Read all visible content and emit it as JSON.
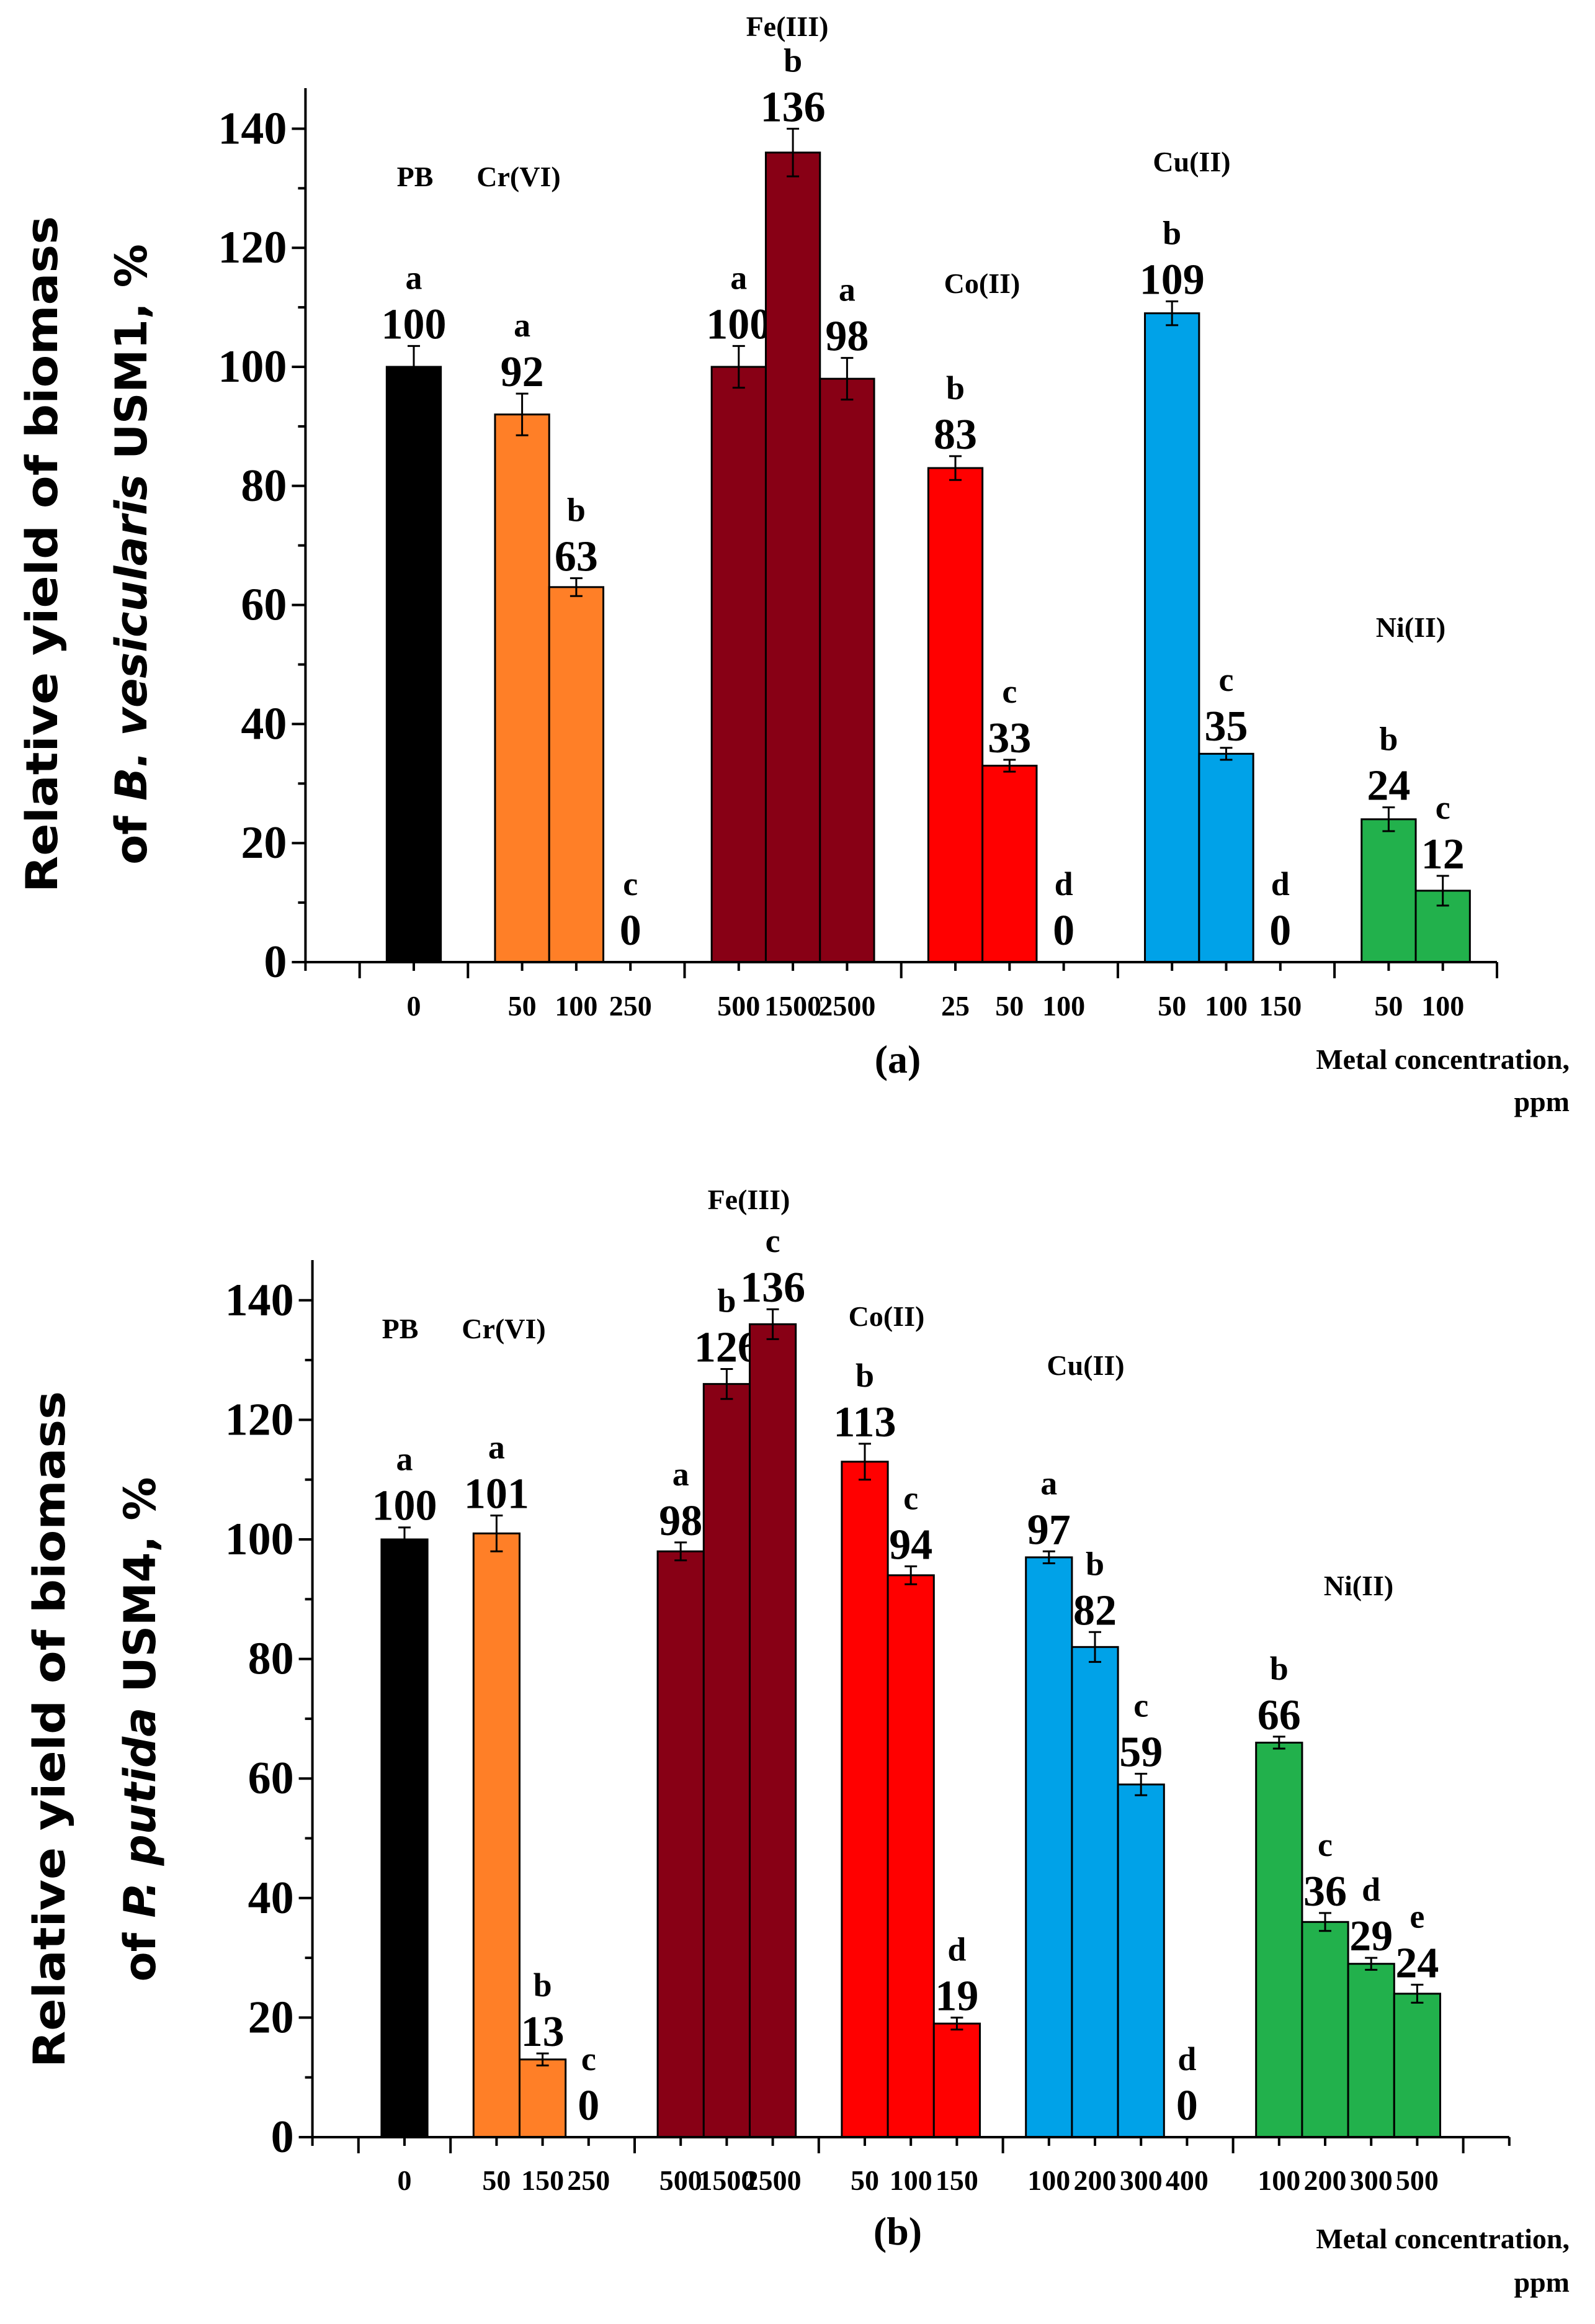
{
  "colors": {
    "PB": "#000000",
    "Cr(VI)": "#FF7F27",
    "Fe(III)": "#880015",
    "Co(II)": "#FF0000",
    "Cu(II)": "#00A2E8",
    "Ni(II)": "#22B14C"
  },
  "chart_data": [
    {
      "type": "bar",
      "panel_label": "(a)",
      "ylabel_line1": "Relative yield of biomass",
      "ylabel_line2_prefix": "of ",
      "ylabel_line2_italic": "B. vesicularis",
      "ylabel_line2_suffix": " USM1, %",
      "xlabel_line1": "Metal concentration,",
      "xlabel_line2": "ppm",
      "ylim": [
        0,
        140
      ],
      "yticks": [
        0,
        20,
        40,
        60,
        80,
        100,
        120,
        140
      ],
      "xlim": [
        -2,
        20
      ],
      "groups": [
        {
          "name": "PB",
          "positions": [
            0
          ],
          "categories": [
            "0"
          ],
          "values": [
            100
          ],
          "errors": [
            3.5
          ],
          "letters": [
            "a"
          ]
        },
        {
          "name": "Cr(VI)",
          "positions": [
            2,
            3,
            4
          ],
          "categories": [
            "50",
            "100",
            "250"
          ],
          "values": [
            92,
            63,
            0
          ],
          "errors": [
            3.5,
            1.5,
            0
          ],
          "letters": [
            "a",
            "b",
            "c"
          ]
        },
        {
          "name": "Fe(III)",
          "positions": [
            6,
            7,
            8
          ],
          "categories": [
            "500",
            "1500",
            "2500"
          ],
          "values": [
            100,
            136,
            98
          ],
          "errors": [
            3.5,
            4,
            3.5
          ],
          "letters": [
            "a",
            "b",
            "a"
          ]
        },
        {
          "name": "Co(II)",
          "positions": [
            10,
            11,
            12
          ],
          "categories": [
            "25",
            "50",
            "100"
          ],
          "values": [
            83,
            33,
            0
          ],
          "errors": [
            2,
            1,
            0
          ],
          "letters": [
            "b",
            "c",
            "d"
          ]
        },
        {
          "name": "Cu(II)",
          "positions": [
            14,
            15,
            16
          ],
          "categories": [
            "50",
            "100",
            "150"
          ],
          "values": [
            109,
            35,
            0
          ],
          "errors": [
            2,
            1,
            0
          ],
          "letters": [
            "b",
            "c",
            "d"
          ]
        },
        {
          "name": "Ni(II)",
          "positions": [
            18,
            19
          ],
          "categories": [
            "50",
            "100"
          ],
          "values": [
            24,
            12
          ],
          "errors": [
            2,
            2.5
          ],
          "letters": [
            "b",
            "c"
          ]
        }
      ]
    },
    {
      "type": "bar",
      "panel_label": "(b)",
      "ylabel_line1": "Relative yield of biomass",
      "ylabel_line2_prefix": "of ",
      "ylabel_line2_italic": "P. putida",
      "ylabel_line2_suffix": " USM4, %",
      "xlabel_line1": "Metal concentration,",
      "xlabel_line2": "ppm",
      "ylim": [
        0,
        140
      ],
      "yticks": [
        0,
        20,
        40,
        60,
        80,
        100,
        120,
        140
      ],
      "xlim": [
        -2,
        24
      ],
      "groups": [
        {
          "name": "PB",
          "positions": [
            0
          ],
          "categories": [
            "0"
          ],
          "values": [
            100
          ],
          "errors": [
            2
          ],
          "letters": [
            "a"
          ]
        },
        {
          "name": "Cr(VI)",
          "positions": [
            2,
            3,
            4
          ],
          "categories": [
            "50",
            "150",
            "250"
          ],
          "values": [
            101,
            13,
            0
          ],
          "errors": [
            3,
            1,
            0
          ],
          "letters": [
            "a",
            "b",
            "c"
          ]
        },
        {
          "name": "Fe(III)",
          "positions": [
            6,
            7,
            8
          ],
          "categories": [
            "500",
            "1500",
            "2500"
          ],
          "values": [
            98,
            126,
            136
          ],
          "errors": [
            1.5,
            2.5,
            2.5
          ],
          "letters": [
            "a",
            "b",
            "c"
          ]
        },
        {
          "name": "Co(II)",
          "positions": [
            10,
            11,
            12
          ],
          "categories": [
            "50",
            "100",
            "150"
          ],
          "values": [
            113,
            94,
            19
          ],
          "errors": [
            3,
            1.5,
            1
          ],
          "letters": [
            "b",
            "c",
            "d"
          ]
        },
        {
          "name": "Cu(II)",
          "positions": [
            14,
            15,
            16,
            17
          ],
          "categories": [
            "100",
            "200",
            "300",
            "400"
          ],
          "values": [
            97,
            82,
            59,
            0
          ],
          "errors": [
            1,
            2.5,
            1.8,
            0
          ],
          "letters": [
            "a",
            "b",
            "c",
            "d"
          ]
        },
        {
          "name": "Ni(II)",
          "positions": [
            19,
            20,
            21,
            22
          ],
          "categories": [
            "100",
            "200",
            "300",
            "500"
          ],
          "values": [
            66,
            36,
            29,
            24
          ],
          "errors": [
            1,
            1.5,
            1,
            1.5
          ],
          "letters": [
            "b",
            "c",
            "d",
            "e"
          ]
        }
      ]
    }
  ]
}
